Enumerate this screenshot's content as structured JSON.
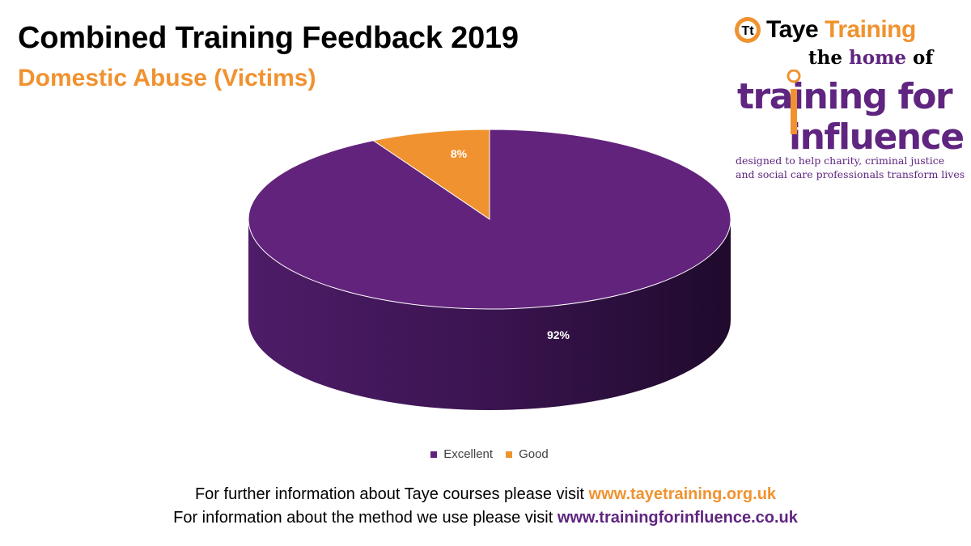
{
  "header": {
    "title": "Combined Training Feedback 2019",
    "subtitle": "Domestic Abuse (Victims)"
  },
  "logo": {
    "brand_part1": "Taye",
    "brand_part2": "Training",
    "home_prefix": "the ",
    "home_word": "home",
    "home_suffix": " of",
    "wordmark_line1": "training for",
    "wordmark_line2": "influence",
    "tagline_line1": "designed to help charity, criminal justice",
    "tagline_line2": "and social care professionals transform lives"
  },
  "chart_data": {
    "type": "pie",
    "title": "",
    "categories": [
      "Excellent",
      "Good"
    ],
    "values": [
      92,
      8
    ],
    "labels": [
      "92%",
      "8%"
    ],
    "colors": [
      "#62237c",
      "#f0922f"
    ],
    "legend_position": "bottom"
  },
  "footer": {
    "line1_text": "For further information about Taye courses please visit ",
    "line1_link": "www.tayetraining.org.uk",
    "line2_text": "For information about the method we use please visit ",
    "line2_link": "www.trainingforinfluence.co.uk"
  },
  "colors": {
    "accent_orange": "#f0922f",
    "accent_purple": "#5f2580"
  }
}
